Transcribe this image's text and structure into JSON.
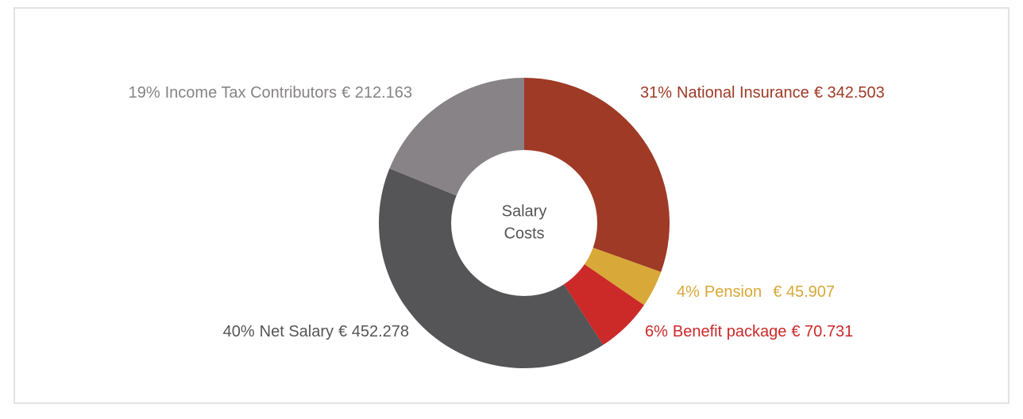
{
  "chart_data": {
    "type": "pie",
    "center_label": [
      "Salary",
      "Costs"
    ],
    "categories": [
      "National Insurance",
      "Pension",
      "Benefit package",
      "Net Salary",
      "Income Tax Contributors"
    ],
    "values": [
      31,
      4,
      6,
      40,
      19
    ],
    "value_labels": [
      "31%",
      "4%",
      "6%",
      "40%",
      "19%"
    ],
    "amounts": [
      342503,
      45907,
      70731,
      452278,
      212163
    ],
    "amount_labels": [
      "€ 342.503",
      "€ 45.907",
      "€ 70.731",
      "€ 452.278",
      "€ 212.163"
    ],
    "colors": [
      "#9e3a26",
      "#d8a838",
      "#cc2929",
      "#555557",
      "#878386"
    ]
  }
}
